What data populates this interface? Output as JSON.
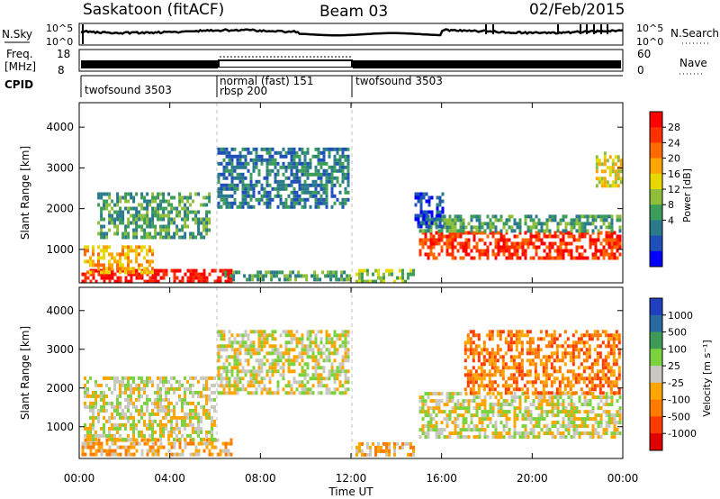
{
  "header": {
    "station": "Saskatoon (fitACF)",
    "beam": "Beam 03",
    "date": "02/Feb/2015"
  },
  "strip_labels": {
    "nsky": "N.Sky",
    "nsky_ticks": [
      "10^5",
      "10^0"
    ],
    "nsearch": "N.Search",
    "freq_line1": "Freq.",
    "freq_line2": "[MHz]",
    "freq_ticks": [
      "18",
      "8"
    ],
    "nave_ticks": [
      "60",
      "0"
    ],
    "nave": "Nave",
    "cpid": "CPID"
  },
  "cpid_segments": [
    {
      "label": "twofsound 3503",
      "label2": "",
      "start_hr": 0,
      "end_hr": 6
    },
    {
      "label": "normal (fast) 151",
      "label2": "rbsp 200",
      "start_hr": 6,
      "end_hr": 12
    },
    {
      "label": "twofsound 3503",
      "label2": "",
      "start_hr": 12,
      "end_hr": 24
    }
  ],
  "chart_data": [
    {
      "type": "heatmap",
      "panel": "power",
      "ylabel": "Slant Range [km]",
      "xlim_hr": [
        0,
        24
      ],
      "ylim": [
        180,
        4600
      ],
      "yticks": [
        1000,
        2000,
        3000,
        4000
      ],
      "colorbar": {
        "label": "Power [dB]",
        "ticks": [
          "28",
          "24",
          "20",
          "16",
          "12",
          "8",
          "4"
        ],
        "colors": [
          "#ff0000",
          "#ff3000",
          "#ff6a00",
          "#ffa500",
          "#e6d800",
          "#8fbe3a",
          "#3c9c5a",
          "#2a7a8c",
          "#1f4fb8",
          "#0000ff"
        ]
      },
      "regions": [
        {
          "t0": 0.1,
          "t1": 6.7,
          "r0": 250,
          "r1": 520,
          "level": 0
        },
        {
          "t0": 0.2,
          "t1": 3.2,
          "r0": 450,
          "r1": 1100,
          "level": 3
        },
        {
          "t0": 0.8,
          "t1": 5.8,
          "r0": 1300,
          "r1": 2400,
          "level": 6
        },
        {
          "t0": 6.1,
          "t1": 11.9,
          "r0": 2000,
          "r1": 3500,
          "level": 7
        },
        {
          "t0": 6.4,
          "t1": 11.9,
          "r0": 250,
          "r1": 480,
          "level": 6
        },
        {
          "t0": 12.2,
          "t1": 14.8,
          "r0": 250,
          "r1": 520,
          "level": 5
        },
        {
          "t0": 15.0,
          "t1": 23.9,
          "r0": 800,
          "r1": 1450,
          "level": 1
        },
        {
          "t0": 15.0,
          "t1": 23.9,
          "r0": 1450,
          "r1": 1850,
          "level": 6
        },
        {
          "t0": 14.8,
          "t1": 16.0,
          "r0": 1600,
          "r1": 2400,
          "level": 8
        },
        {
          "t0": 22.8,
          "t1": 23.9,
          "r0": 2600,
          "r1": 3400,
          "level": 4
        }
      ]
    },
    {
      "type": "heatmap",
      "panel": "velocity",
      "ylabel": "Slant Range [km]",
      "xlabel": "Time UT",
      "xlim_hr": [
        0,
        24
      ],
      "xticks": [
        "00:00",
        "04:00",
        "08:00",
        "12:00",
        "16:00",
        "20:00",
        "00:00"
      ],
      "ylim": [
        180,
        4600
      ],
      "yticks": [
        1000,
        2000,
        3000,
        4000
      ],
      "colorbar": {
        "label": "Velocity [m s⁻¹]",
        "ticks": [
          "1000",
          "500",
          "100",
          "25",
          "-25",
          "-100",
          "-500",
          "-1000"
        ],
        "colors": [
          "#1f3fbf",
          "#2a6aa0",
          "#3d9b55",
          "#7bd23c",
          "#c8c8c0",
          "#ffa500",
          "#ff7b00",
          "#ff3a00",
          "#e00000"
        ]
      },
      "regions": [
        {
          "t0": 0.1,
          "t1": 6.7,
          "r0": 250,
          "r1": 700,
          "level": 5
        },
        {
          "t0": 0.2,
          "t1": 6.0,
          "r0": 700,
          "r1": 2300,
          "level": 4
        },
        {
          "t0": 6.1,
          "t1": 11.9,
          "r0": 1900,
          "r1": 3500,
          "level": 4
        },
        {
          "t0": 12.2,
          "t1": 14.8,
          "r0": 250,
          "r1": 600,
          "level": 5
        },
        {
          "t0": 15.0,
          "t1": 23.9,
          "r0": 700,
          "r1": 1900,
          "level": 4
        },
        {
          "t0": 17.0,
          "t1": 23.9,
          "r0": 1900,
          "r1": 3500,
          "level": 6
        }
      ]
    }
  ]
}
